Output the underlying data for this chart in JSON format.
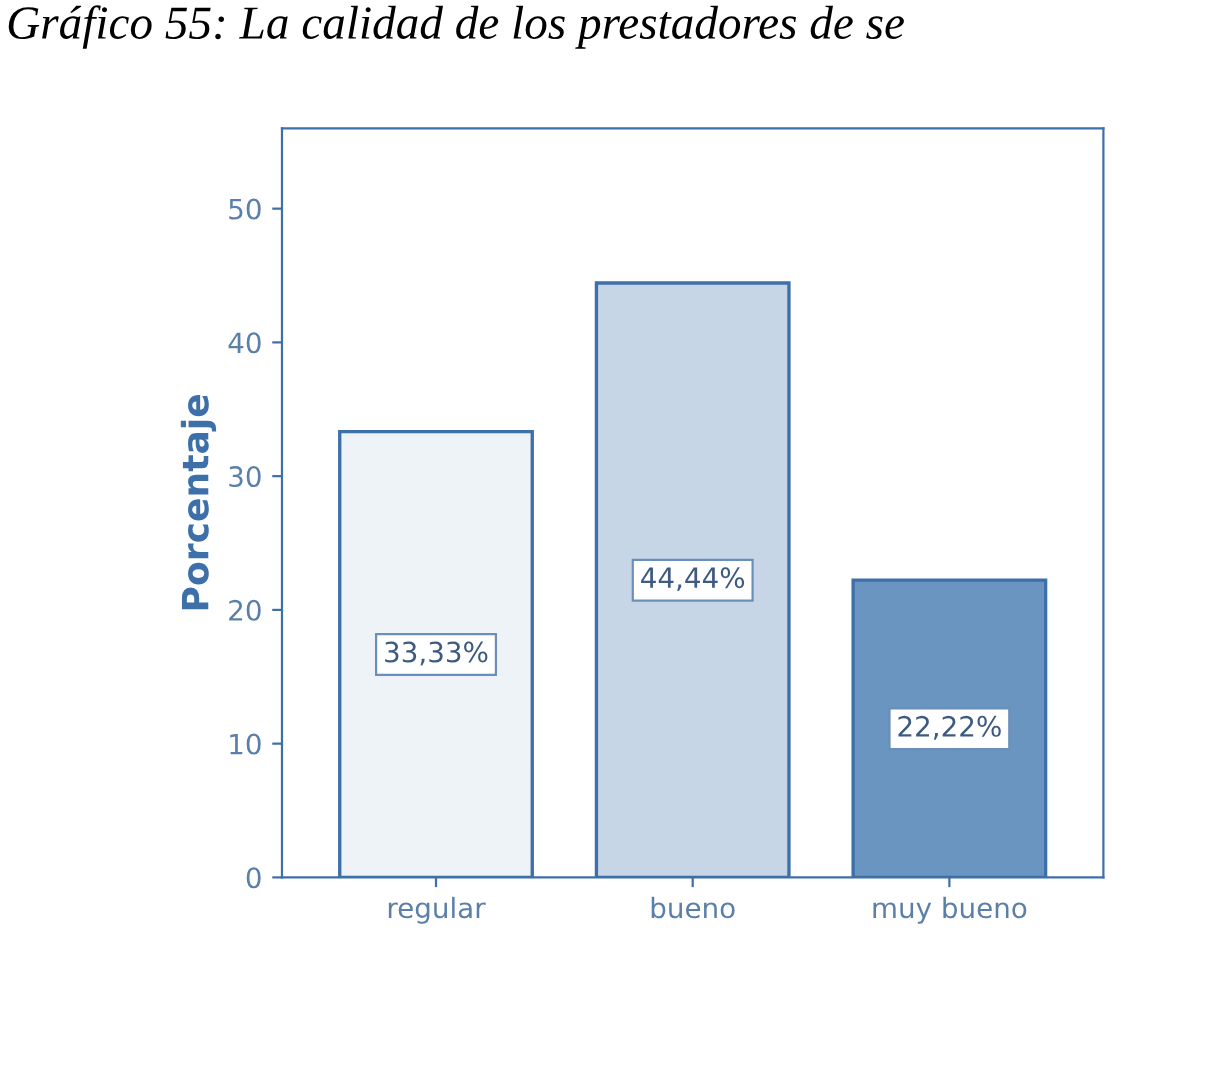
{
  "chart_data": {
    "type": "bar",
    "title": "Gráfico 55: La calidad de los prestadores de se",
    "ylabel": "Porcentaje",
    "categories": [
      "regular",
      "bueno",
      "muy bueno"
    ],
    "values": [
      33.33,
      44.44,
      22.22
    ],
    "colors": [
      "#eef3f8",
      "#c7d6e7",
      "#6a95c0"
    ],
    "value_labels": [
      "33,33%",
      "44,44%",
      "22,22%"
    ],
    "ylim": [
      0,
      56
    ],
    "yticks": [
      0,
      10,
      20,
      30,
      40,
      50
    ],
    "grid": false
  }
}
